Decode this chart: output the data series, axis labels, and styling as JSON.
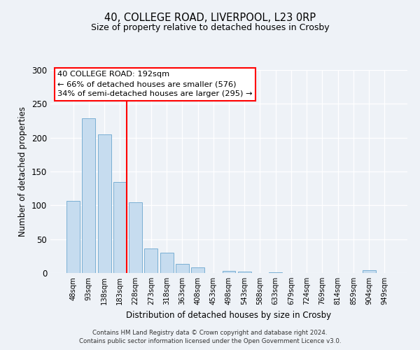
{
  "title1": "40, COLLEGE ROAD, LIVERPOOL, L23 0RP",
  "title2": "Size of property relative to detached houses in Crosby",
  "xlabel": "Distribution of detached houses by size in Crosby",
  "ylabel": "Number of detached properties",
  "bar_labels": [
    "48sqm",
    "93sqm",
    "138sqm",
    "183sqm",
    "228sqm",
    "273sqm",
    "318sqm",
    "363sqm",
    "408sqm",
    "453sqm",
    "498sqm",
    "543sqm",
    "588sqm",
    "633sqm",
    "679sqm",
    "724sqm",
    "769sqm",
    "814sqm",
    "859sqm",
    "904sqm",
    "949sqm"
  ],
  "bar_values": [
    107,
    229,
    205,
    135,
    104,
    36,
    30,
    13,
    8,
    0,
    3,
    2,
    0,
    1,
    0,
    0,
    0,
    0,
    0,
    4,
    0
  ],
  "bar_color": "#c6dcef",
  "bar_edgecolor": "#7aafd4",
  "bg_color": "#eef2f7",
  "vline_x_index": 3.45,
  "vline_color": "red",
  "annotation_text": "40 COLLEGE ROAD: 192sqm\n← 66% of detached houses are smaller (576)\n34% of semi-detached houses are larger (295) →",
  "annotation_box_color": "white",
  "annotation_box_edgecolor": "red",
  "ylim": [
    0,
    300
  ],
  "yticks": [
    0,
    50,
    100,
    150,
    200,
    250,
    300
  ],
  "footer1": "Contains HM Land Registry data © Crown copyright and database right 2024.",
  "footer2": "Contains public sector information licensed under the Open Government Licence v3.0."
}
